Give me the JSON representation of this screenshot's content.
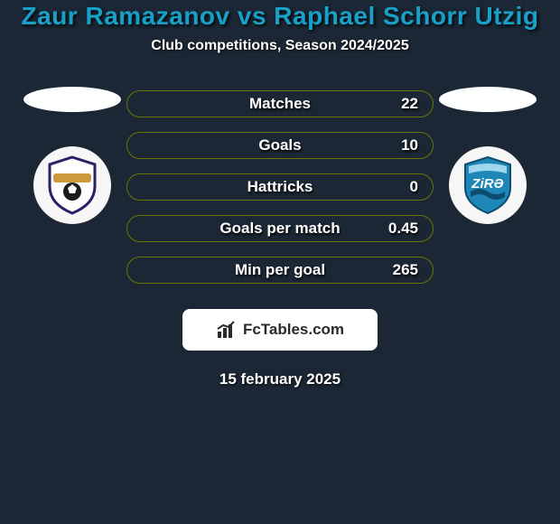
{
  "title": {
    "text": "Zaur Ramazanov vs Raphael Schorr Utzig",
    "fontsize": 28,
    "color": "#18a0c9"
  },
  "subtitle": {
    "text": "Club competitions, Season 2024/2025",
    "fontsize": 16,
    "color": "#ffffff"
  },
  "date": {
    "text": "15 february 2025",
    "fontsize": 17,
    "color": "#ffffff"
  },
  "background_color": "#1b2734",
  "oval_color": "#feffff",
  "stats": {
    "label_fontsize": 17,
    "value_fontsize": 17,
    "pill_bg": "#1b2734",
    "pill_border": "#6a7602",
    "pill_border_width": 1,
    "rows": [
      {
        "label": "Matches",
        "value": "22"
      },
      {
        "label": "Goals",
        "value": "10"
      },
      {
        "label": "Hattricks",
        "value": "0"
      },
      {
        "label": "Goals per match",
        "value": "0.45"
      },
      {
        "label": "Min per goal",
        "value": "265"
      }
    ]
  },
  "brand": {
    "box_bg": "#ffffff",
    "text": "FcTables.com",
    "text_color": "#2a2a2a",
    "fontsize": 17,
    "icon_color": "#2a2a2a"
  },
  "left_crest": {
    "circle_bg": "#f6f6f6",
    "shield_border": "#2a2266",
    "shield_fill": "#ffffff",
    "ribbon_fill": "#cc9a3a",
    "ball_fill": "#1a1a1a"
  },
  "right_crest": {
    "circle_bg": "#f6f6f6",
    "shield_fill": "#1f86b8",
    "shield_dark": "#0d4c6e",
    "accent": "#9fd7ef",
    "text": "ZiRƏ",
    "text_color": "#ffffff"
  }
}
